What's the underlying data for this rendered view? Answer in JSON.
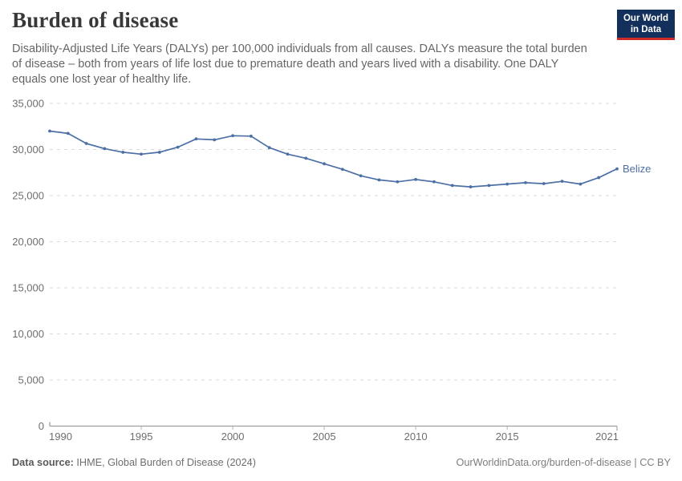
{
  "header": {
    "title": "Burden of disease",
    "subtitle": "Disability-Adjusted Life Years (DALYs) per 100,000 individuals from all causes. DALYs measure the total burden of disease – both from years of life lost due to premature death and years lived with a disability. One DALY equals one lost year of healthy life.",
    "logo": {
      "line1": "Our World",
      "line2": "in Data",
      "bg_color": "#12305b",
      "accent_color": "#cf2b26"
    }
  },
  "footer": {
    "source_label": "Data source:",
    "source_value": " IHME, Global Burden of Disease (2024)",
    "link": "OurWorldinData.org/burden-of-disease | CC BY"
  },
  "chart_data": {
    "type": "line",
    "title": "Burden of disease",
    "xlabel": "",
    "ylabel": "DALYs per 100,000 individuals",
    "xlim": [
      1990,
      2021
    ],
    "ylim": [
      0,
      35000
    ],
    "grid": "horizontal-dashed",
    "legend_position": "end-of-line-label",
    "x_ticks": [
      1990,
      1995,
      2000,
      2005,
      2010,
      2015,
      2021
    ],
    "y_ticks": [
      0,
      5000,
      10000,
      15000,
      20000,
      25000,
      30000,
      35000
    ],
    "x": [
      1990,
      1991,
      1992,
      1993,
      1994,
      1995,
      1996,
      1997,
      1998,
      1999,
      2000,
      2001,
      2002,
      2003,
      2004,
      2005,
      2006,
      2007,
      2008,
      2009,
      2010,
      2011,
      2012,
      2013,
      2014,
      2015,
      2016,
      2017,
      2018,
      2019,
      2020,
      2021
    ],
    "series": [
      {
        "name": "Belize",
        "color": "#4c6fa5",
        "values": [
          32000,
          31750,
          30650,
          30100,
          29700,
          29500,
          29700,
          30250,
          31150,
          31050,
          31500,
          31450,
          30200,
          29500,
          29050,
          28450,
          27850,
          27150,
          26700,
          26500,
          26750,
          26500,
          26100,
          25950,
          26100,
          26250,
          26400,
          26300,
          26550,
          26250,
          26950,
          27900
        ]
      }
    ],
    "style": {
      "grid_color": "#d9d9d9",
      "axis_color": "#9e9e9e",
      "tick_label_color": "#6e6e6e"
    }
  }
}
